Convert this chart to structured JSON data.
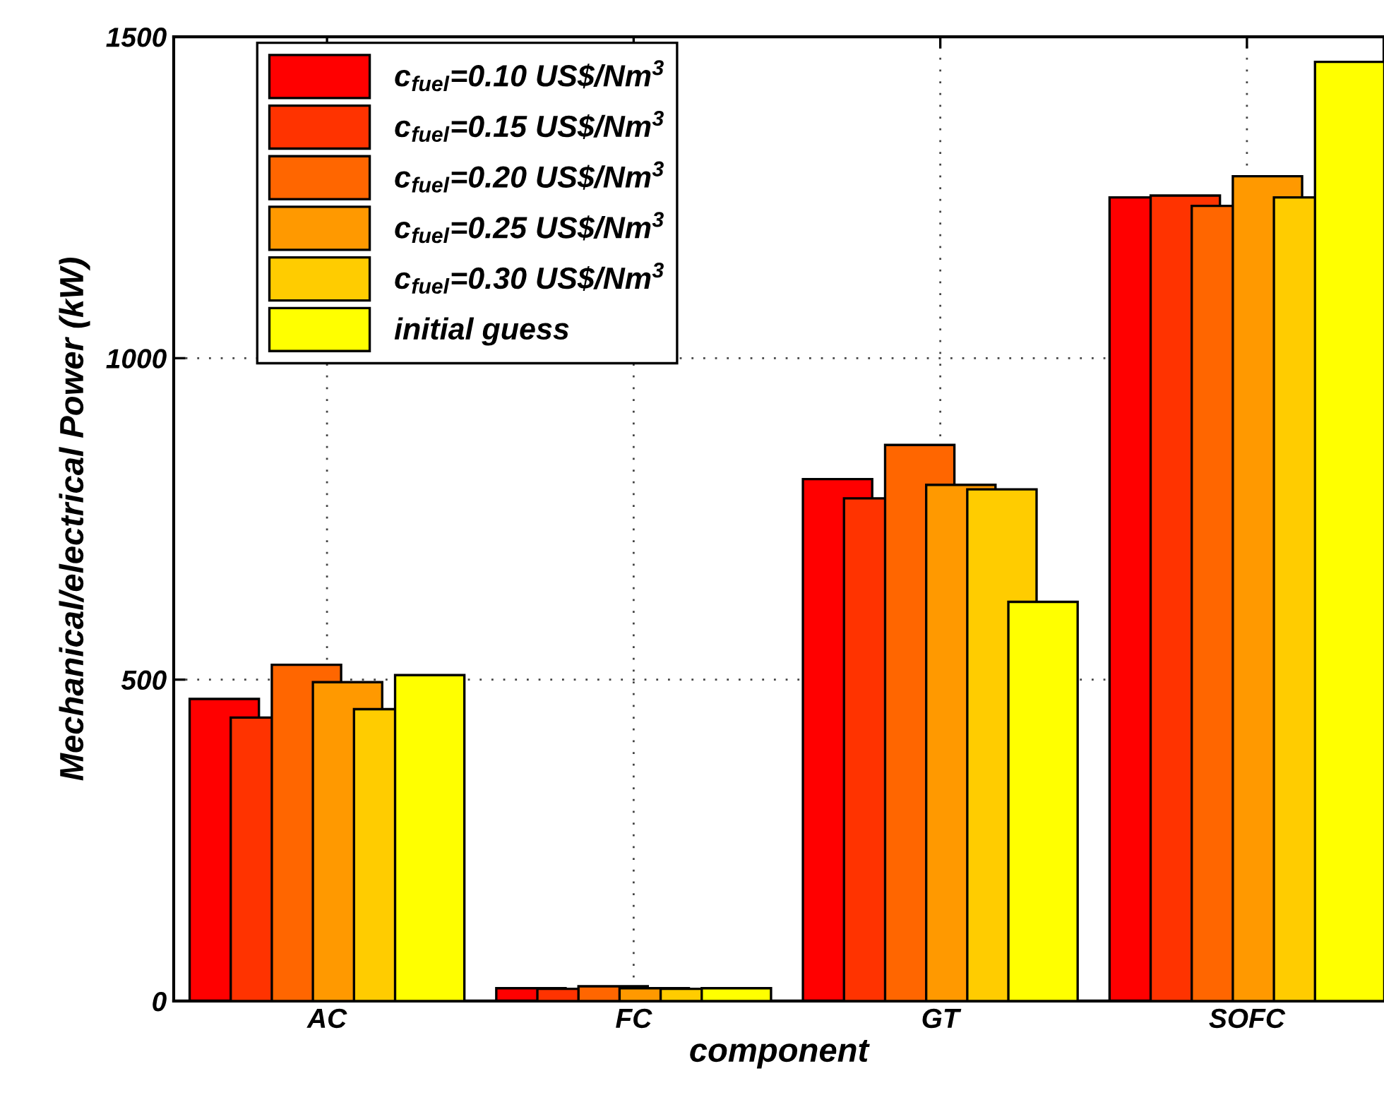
{
  "chart_data": {
    "type": "bar",
    "xlabel": "component",
    "ylabel": "Mechanical/electrical Power (kW)",
    "categories": [
      "AC",
      "FC",
      "GT",
      "SOFC"
    ],
    "series": [
      {
        "name": "c$_{fuel}$=0.10 US$/Nm$^{3}$",
        "color": "#ff0000",
        "values": [
          470,
          20,
          812,
          1250
        ]
      },
      {
        "name": "c$_{fuel}$=0.15 US$/Nm$^{3}$",
        "color": "#ff3300",
        "values": [
          441,
          19,
          782,
          1253
        ]
      },
      {
        "name": "c$_{fuel}$=0.20 US$/Nm$^{3}$",
        "color": "#ff6600",
        "values": [
          523,
          23,
          865,
          1237
        ]
      },
      {
        "name": "c$_{fuel}$=0.25 US$/Nm$^{3}$",
        "color": "#ff9900",
        "values": [
          496,
          20,
          803,
          1283
        ]
      },
      {
        "name": "c$_{fuel}$=0.30 US$/Nm$^{3}$",
        "color": "#ffcc00",
        "values": [
          454,
          19,
          796,
          1250
        ]
      },
      {
        "name": "initial guess",
        "color": "#ffff00",
        "values": [
          507,
          20,
          621,
          1461
        ]
      }
    ],
    "ylim": [
      0,
      1500
    ],
    "yticks": [
      0,
      500,
      1000,
      1500
    ],
    "grid": true,
    "legend": "top left"
  }
}
